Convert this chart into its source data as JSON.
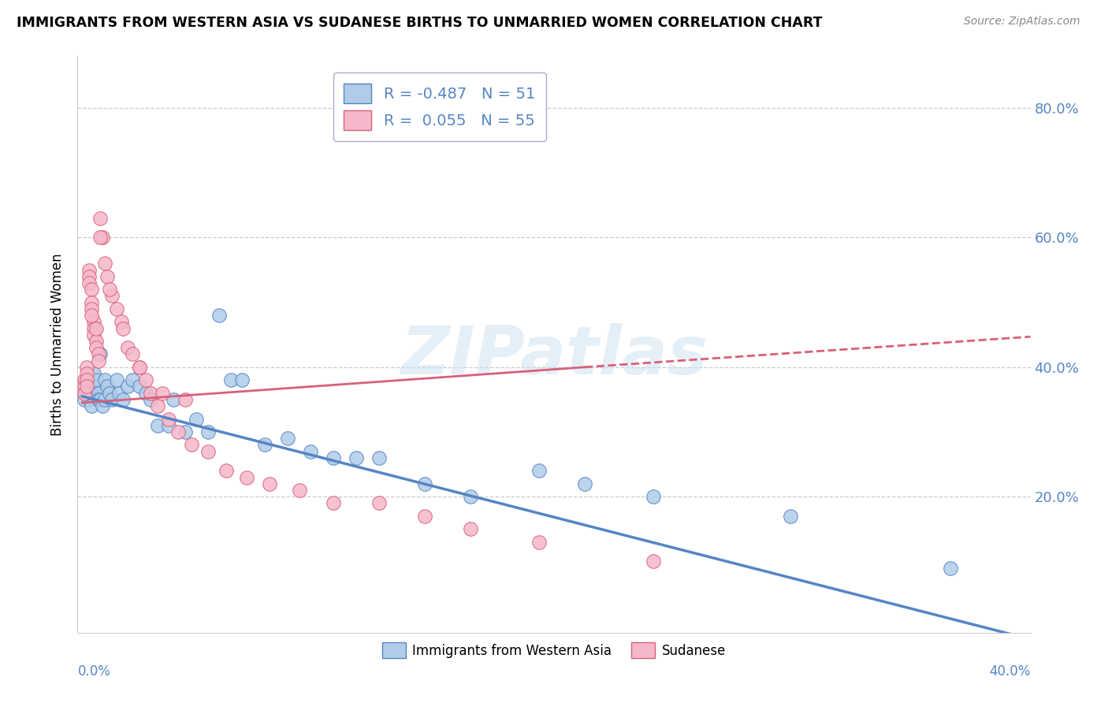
{
  "title": "IMMIGRANTS FROM WESTERN ASIA VS SUDANESE BIRTHS TO UNMARRIED WOMEN CORRELATION CHART",
  "source": "Source: ZipAtlas.com",
  "ylabel": "Births to Unmarried Women",
  "xlim": [
    -0.002,
    0.415
  ],
  "ylim": [
    -0.01,
    0.88
  ],
  "legend_r_blue": "-0.487",
  "legend_n_blue": "51",
  "legend_r_pink": "0.055",
  "legend_n_pink": "55",
  "color_blue": "#b0cce8",
  "color_pink": "#f5b8cb",
  "edge_blue": "#5585c5",
  "edge_pink": "#d9607a",
  "watermark": "ZIPatlas",
  "ytick_vals": [
    0.2,
    0.4,
    0.6,
    0.8
  ],
  "ytick_labels": [
    "20.0%",
    "40.0%",
    "60.0%",
    "80.0%"
  ],
  "blue_trend": [
    0.0,
    0.355,
    0.415,
    -0.02
  ],
  "pink_trend_solid": [
    0.0,
    0.345,
    0.22,
    0.4
  ],
  "pink_trend_dashed": [
    0.22,
    0.4,
    0.415,
    0.447
  ],
  "blue_x": [
    0.001,
    0.001,
    0.002,
    0.002,
    0.003,
    0.003,
    0.004,
    0.004,
    0.005,
    0.005,
    0.006,
    0.007,
    0.007,
    0.008,
    0.008,
    0.009,
    0.01,
    0.01,
    0.011,
    0.012,
    0.013,
    0.015,
    0.016,
    0.018,
    0.02,
    0.022,
    0.025,
    0.028,
    0.03,
    0.033,
    0.038,
    0.04,
    0.045,
    0.05,
    0.055,
    0.06,
    0.065,
    0.07,
    0.08,
    0.09,
    0.1,
    0.11,
    0.12,
    0.13,
    0.15,
    0.17,
    0.2,
    0.22,
    0.25,
    0.31,
    0.38
  ],
  "blue_y": [
    0.36,
    0.35,
    0.38,
    0.36,
    0.37,
    0.35,
    0.36,
    0.34,
    0.39,
    0.37,
    0.38,
    0.36,
    0.35,
    0.42,
    0.35,
    0.34,
    0.38,
    0.35,
    0.37,
    0.36,
    0.35,
    0.38,
    0.36,
    0.35,
    0.37,
    0.38,
    0.37,
    0.36,
    0.35,
    0.31,
    0.31,
    0.35,
    0.3,
    0.32,
    0.3,
    0.48,
    0.38,
    0.38,
    0.28,
    0.29,
    0.27,
    0.26,
    0.26,
    0.26,
    0.22,
    0.2,
    0.24,
    0.22,
    0.2,
    0.17,
    0.09
  ],
  "pink_x": [
    0.001,
    0.001,
    0.001,
    0.002,
    0.002,
    0.002,
    0.003,
    0.003,
    0.003,
    0.004,
    0.004,
    0.004,
    0.005,
    0.005,
    0.005,
    0.006,
    0.006,
    0.007,
    0.007,
    0.008,
    0.009,
    0.01,
    0.011,
    0.013,
    0.015,
    0.017,
    0.02,
    0.022,
    0.025,
    0.028,
    0.03,
    0.033,
    0.038,
    0.042,
    0.048,
    0.055,
    0.063,
    0.072,
    0.082,
    0.095,
    0.11,
    0.13,
    0.15,
    0.17,
    0.2,
    0.25,
    0.002,
    0.004,
    0.006,
    0.008,
    0.012,
    0.018,
    0.025,
    0.035,
    0.045
  ],
  "pink_y": [
    0.38,
    0.37,
    0.36,
    0.4,
    0.39,
    0.38,
    0.55,
    0.54,
    0.53,
    0.52,
    0.5,
    0.49,
    0.47,
    0.46,
    0.45,
    0.44,
    0.43,
    0.42,
    0.41,
    0.63,
    0.6,
    0.56,
    0.54,
    0.51,
    0.49,
    0.47,
    0.43,
    0.42,
    0.4,
    0.38,
    0.36,
    0.34,
    0.32,
    0.3,
    0.28,
    0.27,
    0.24,
    0.23,
    0.22,
    0.21,
    0.19,
    0.19,
    0.17,
    0.15,
    0.13,
    0.1,
    0.37,
    0.48,
    0.46,
    0.6,
    0.52,
    0.46,
    0.4,
    0.36,
    0.35
  ]
}
